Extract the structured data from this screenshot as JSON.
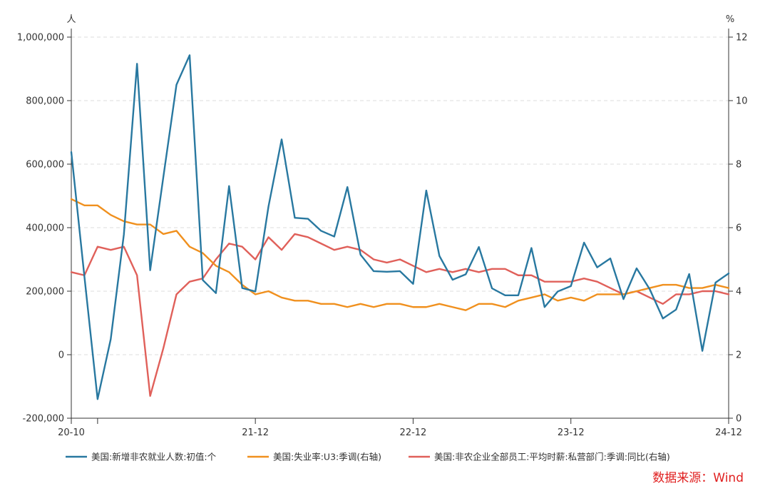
{
  "chart_data": {
    "type": "line",
    "left_unit": "人",
    "right_unit": "%",
    "x_tick_labels": [
      "20-10",
      "21-12",
      "22-12",
      "23-12",
      "24-12"
    ],
    "left_ticks": [
      "-200,000",
      "0",
      "200,000",
      "400,000",
      "600,000",
      "800,000",
      "1,000,000"
    ],
    "right_ticks": [
      "0",
      "2",
      "4",
      "6",
      "8",
      "10",
      "12"
    ],
    "ylim_left": [
      -200000,
      1000000
    ],
    "ylim_right": [
      0,
      12
    ],
    "grid": true,
    "legend_position": "bottom",
    "x": [
      "2020-10",
      "2020-11",
      "2020-12",
      "2021-01",
      "2021-02",
      "2021-03",
      "2021-04",
      "2021-05",
      "2021-06",
      "2021-07",
      "2021-08",
      "2021-09",
      "2021-10",
      "2021-11",
      "2021-12",
      "2022-01",
      "2022-02",
      "2022-03",
      "2022-04",
      "2022-05",
      "2022-06",
      "2022-07",
      "2022-08",
      "2022-09",
      "2022-10",
      "2022-11",
      "2022-12",
      "2023-01",
      "2023-02",
      "2023-03",
      "2023-04",
      "2023-05",
      "2023-06",
      "2023-07",
      "2023-08",
      "2023-09",
      "2023-10",
      "2023-11",
      "2023-12",
      "2024-01",
      "2024-02",
      "2024-03",
      "2024-04",
      "2024-05",
      "2024-06",
      "2024-07",
      "2024-08",
      "2024-09",
      "2024-10",
      "2024-11",
      "2024-12"
    ],
    "series": [
      {
        "name": "美国:新增非农就业人数:初值:个",
        "axis": "left",
        "color": "#2878a0",
        "values": [
          638000,
          245000,
          -140000,
          49000,
          379000,
          916000,
          266000,
          559000,
          850000,
          943000,
          235000,
          194000,
          531000,
          210000,
          199000,
          467000,
          678000,
          431000,
          428000,
          390000,
          372000,
          528000,
          315000,
          263000,
          261000,
          263000,
          223000,
          517000,
          311000,
          236000,
          253000,
          339000,
          209000,
          187000,
          187000,
          336000,
          150000,
          199000,
          216000,
          353000,
          275000,
          303000,
          175000,
          272000,
          206000,
          114000,
          142000,
          254000,
          12000,
          227000,
          256000
        ]
      },
      {
        "name": "美国:失业率:U3:季调(右轴)",
        "axis": "right",
        "color": "#f0901e",
        "values": [
          6.9,
          6.7,
          6.7,
          6.4,
          6.2,
          6.1,
          6.1,
          5.8,
          5.9,
          5.4,
          5.2,
          4.8,
          4.6,
          4.2,
          3.9,
          4.0,
          3.8,
          3.7,
          3.7,
          3.6,
          3.6,
          3.5,
          3.6,
          3.5,
          3.6,
          3.6,
          3.5,
          3.5,
          3.6,
          3.5,
          3.4,
          3.6,
          3.6,
          3.5,
          3.7,
          3.8,
          3.9,
          3.7,
          3.8,
          3.7,
          3.9,
          3.9,
          3.9,
          4.0,
          4.1,
          4.2,
          4.2,
          4.1,
          4.1,
          4.2,
          4.1
        ]
      },
      {
        "name": "美国:非农企业全部员工:平均时薪:私营部门:季调:同比(右轴)",
        "axis": "right",
        "color": "#e0605a",
        "values": [
          4.6,
          4.5,
          5.4,
          5.3,
          5.4,
          4.5,
          0.7,
          2.2,
          3.9,
          4.3,
          4.4,
          5.0,
          5.5,
          5.4,
          5.0,
          5.7,
          5.3,
          5.8,
          5.7,
          5.5,
          5.3,
          5.4,
          5.3,
          5.0,
          4.9,
          5.0,
          4.8,
          4.6,
          4.7,
          4.6,
          4.7,
          4.6,
          4.7,
          4.7,
          4.5,
          4.5,
          4.3,
          4.3,
          4.3,
          4.4,
          4.3,
          4.1,
          3.9,
          4.0,
          3.8,
          3.6,
          3.9,
          3.9,
          4.0,
          4.0,
          3.9
        ]
      }
    ],
    "source": "数据来源：Wind"
  }
}
